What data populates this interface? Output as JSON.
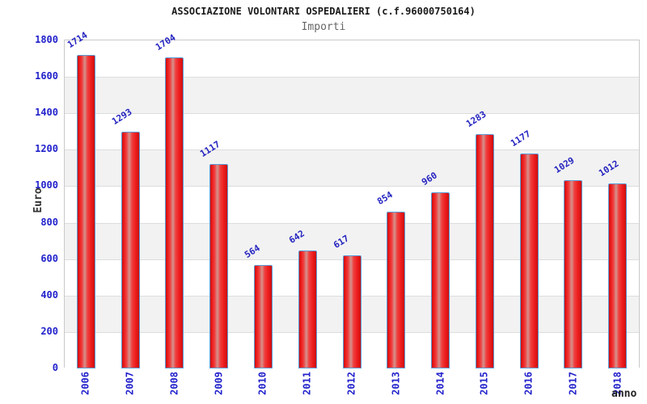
{
  "chart_data": {
    "type": "bar",
    "title": "ASSOCIAZIONE VOLONTARI OSPEDALIERI (c.f.96000750164)",
    "subtitle": "Importi",
    "xlabel": "anno",
    "ylabel": "Euro",
    "categories": [
      "2006",
      "2007",
      "2008",
      "2009",
      "2010",
      "2011",
      "2012",
      "2013",
      "2014",
      "2015",
      "2016",
      "2017",
      "2018"
    ],
    "values": [
      1714,
      1293,
      1704,
      1117,
      564,
      642,
      617,
      854,
      960,
      1283,
      1177,
      1029,
      1012
    ],
    "ylim": [
      0,
      1800
    ],
    "ytick_step": 200,
    "yticks": [
      0,
      200,
      400,
      600,
      800,
      1000,
      1200,
      1400,
      1600,
      1800
    ],
    "grid": "alternating horizontal bands every 200 units",
    "legend": "none",
    "colors": {
      "axis_text": "#2222cc",
      "value_label_text": "#2323c0",
      "title_text": "#1a1a1a",
      "subtitle_text": "#666666",
      "axis_title_text": "#333333",
      "bar_border": "#5b9bd5",
      "bar_red_dark": "#cc0f0f",
      "bar_red": "#ee1c1c",
      "bar_highlight": "#d4938d",
      "band_gray": "#f2f2f2",
      "band_white": "#ffffff",
      "grid_line": "#dddddd",
      "plot_border": "#c9c9c9"
    }
  }
}
